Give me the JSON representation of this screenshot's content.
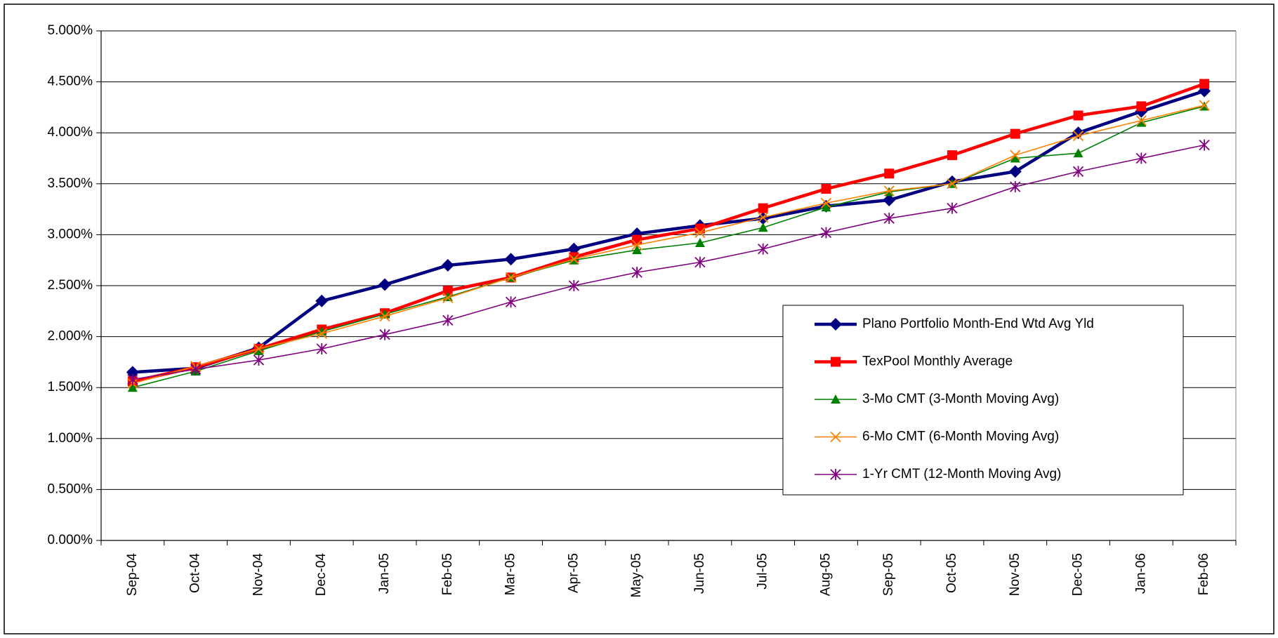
{
  "chart_data": {
    "type": "line",
    "categories": [
      "Sep-04",
      "Oct-04",
      "Nov-04",
      "Dec-04",
      "Jan-05",
      "Feb-05",
      "Mar-05",
      "Apr-05",
      "May-05",
      "Jun-05",
      "Jul-05",
      "Aug-05",
      "Sep-05",
      "Oct-05",
      "Nov-05",
      "Dec-05",
      "Jan-06",
      "Feb-06"
    ],
    "series": [
      {
        "name": "Plano Portfolio Month-End Wtd Avg Yld",
        "color": "#000080",
        "marker": "diamond",
        "line_width": 4.5,
        "values": [
          1.65,
          1.69,
          1.89,
          2.35,
          2.51,
          2.7,
          2.76,
          2.86,
          3.01,
          3.09,
          3.16,
          3.28,
          3.34,
          3.52,
          3.62,
          4.0,
          4.21,
          4.41
        ]
      },
      {
        "name": "TexPool Monthly Average",
        "color": "#ff0000",
        "marker": "square",
        "line_width": 4.5,
        "values": [
          1.56,
          1.7,
          1.88,
          2.07,
          2.23,
          2.45,
          2.58,
          2.78,
          2.95,
          3.06,
          3.26,
          3.45,
          3.6,
          3.78,
          3.99,
          4.17,
          4.26,
          4.48
        ]
      },
      {
        "name": "3-Mo CMT (3-Month Moving Avg)",
        "color": "#008000",
        "marker": "triangle",
        "line_width": 1.6,
        "values": [
          1.5,
          1.66,
          1.86,
          2.05,
          2.22,
          2.39,
          2.58,
          2.75,
          2.85,
          2.92,
          3.07,
          3.27,
          3.42,
          3.5,
          3.75,
          3.8,
          4.1,
          4.26
        ]
      },
      {
        "name": "6-Mo CMT (6-Month Moving Avg)",
        "color": "#ff8000",
        "marker": "x",
        "line_width": 1.6,
        "values": [
          1.54,
          1.71,
          1.88,
          2.03,
          2.2,
          2.38,
          2.58,
          2.76,
          2.9,
          3.02,
          3.17,
          3.31,
          3.43,
          3.5,
          3.78,
          3.97,
          4.12,
          4.27
        ]
      },
      {
        "name": "1-Yr CMT (12-Month Moving Avg)",
        "color": "#800080",
        "marker": "star",
        "line_width": 1.6,
        "values": [
          1.58,
          1.68,
          1.77,
          1.88,
          2.02,
          2.16,
          2.34,
          2.5,
          2.63,
          2.73,
          2.86,
          3.02,
          3.16,
          3.26,
          3.47,
          3.62,
          3.75,
          3.88
        ]
      }
    ],
    "ylim": [
      0,
      5
    ],
    "yticks": [
      {
        "value": 0,
        "label": "0.000%"
      },
      {
        "value": 0.5,
        "label": "0.500%"
      },
      {
        "value": 1,
        "label": "1.000%"
      },
      {
        "value": 1.5,
        "label": "1.500%"
      },
      {
        "value": 2,
        "label": "2.000%"
      },
      {
        "value": 2.5,
        "label": "2.500%"
      },
      {
        "value": 3,
        "label": "3.000%"
      },
      {
        "value": 3.5,
        "label": "3.500%"
      },
      {
        "value": 4,
        "label": "4.000%"
      },
      {
        "value": 4.5,
        "label": "4.500%"
      },
      {
        "value": 5,
        "label": "5.000%"
      }
    ],
    "grid": true
  }
}
